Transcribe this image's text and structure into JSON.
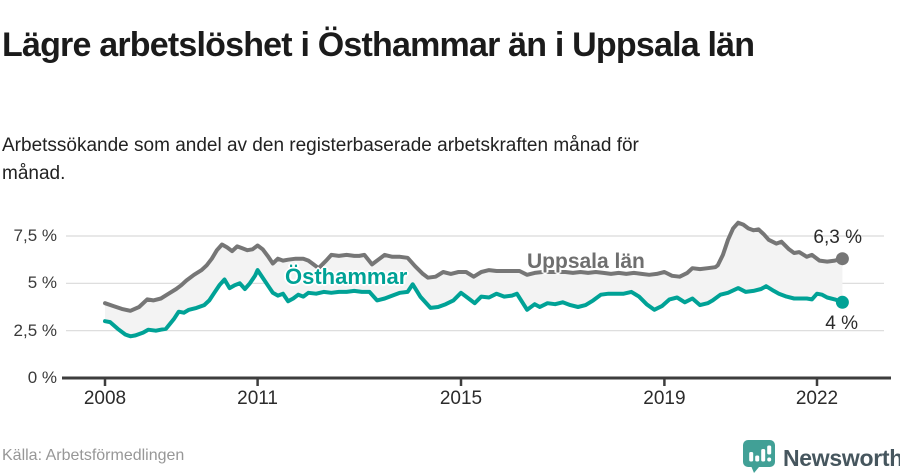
{
  "colors": {
    "teal": "#00a296",
    "gray": "#767676",
    "fill": "#f3f3f3",
    "grid": "#dadada",
    "axis": "#3d3d3d",
    "logo_teal": "#41a096",
    "brand_text": "#46565e"
  },
  "footer": {
    "source": "Källa: Arbetsförmedlingen",
    "brand": "Newsworthy",
    "logo_icon": "newsworthy-bubble-barchart-icon"
  },
  "chart_data": {
    "type": "line",
    "title": "Lägre arbetslöshet i Östhammar än i Uppsala län",
    "subtitle": "Arbetssökande som andel av den registerbaserade arbetskraften månad för månad.",
    "source": "Källa: Arbetsförmedlingen",
    "grid": "horizontal",
    "legend_position": "inline-labels",
    "x_axis": {
      "ticks": [
        2008,
        2011,
        2015,
        2019,
        2022
      ],
      "range": [
        2008,
        2022.6
      ],
      "unit": "year"
    },
    "y_axis": {
      "range": [
        0,
        8.5
      ],
      "unit": "%",
      "ticks": [
        {
          "label": "0 %",
          "value": 0
        },
        {
          "label": "2,5 %",
          "value": 2.5
        },
        {
          "label": "5 %",
          "value": 5
        },
        {
          "label": "7,5 %",
          "value": 7.5
        }
      ]
    },
    "series": [
      {
        "name": "Uppsala län",
        "color": "#767676",
        "end_label": "6,3 %",
        "end_value": 6.3,
        "points": [
          [
            2008.0,
            3.95
          ],
          [
            2008.17,
            3.8
          ],
          [
            2008.33,
            3.65
          ],
          [
            2008.5,
            3.55
          ],
          [
            2008.67,
            3.75
          ],
          [
            2008.83,
            4.15
          ],
          [
            2008.95,
            4.1
          ],
          [
            2009.1,
            4.2
          ],
          [
            2009.25,
            4.45
          ],
          [
            2009.4,
            4.7
          ],
          [
            2009.5,
            4.9
          ],
          [
            2009.6,
            5.15
          ],
          [
            2009.75,
            5.45
          ],
          [
            2009.9,
            5.7
          ],
          [
            2010.0,
            5.95
          ],
          [
            2010.1,
            6.3
          ],
          [
            2010.2,
            6.75
          ],
          [
            2010.3,
            7.05
          ],
          [
            2010.4,
            6.9
          ],
          [
            2010.5,
            6.7
          ],
          [
            2010.6,
            6.95
          ],
          [
            2010.7,
            6.85
          ],
          [
            2010.8,
            6.75
          ],
          [
            2010.9,
            6.8
          ],
          [
            2011.0,
            7.0
          ],
          [
            2011.1,
            6.8
          ],
          [
            2011.2,
            6.45
          ],
          [
            2011.3,
            6.05
          ],
          [
            2011.4,
            6.3
          ],
          [
            2011.5,
            6.2
          ],
          [
            2011.6,
            6.25
          ],
          [
            2011.75,
            6.3
          ],
          [
            2011.9,
            6.3
          ],
          [
            2012.0,
            6.2
          ],
          [
            2012.1,
            6.0
          ],
          [
            2012.2,
            5.8
          ],
          [
            2012.35,
            6.2
          ],
          [
            2012.45,
            6.5
          ],
          [
            2012.6,
            6.45
          ],
          [
            2012.75,
            6.5
          ],
          [
            2012.9,
            6.45
          ],
          [
            2013.0,
            6.45
          ],
          [
            2013.1,
            6.5
          ],
          [
            2013.25,
            6.0
          ],
          [
            2013.4,
            6.3
          ],
          [
            2013.5,
            6.5
          ],
          [
            2013.65,
            6.4
          ],
          [
            2013.8,
            6.4
          ],
          [
            2013.95,
            6.35
          ],
          [
            2014.1,
            5.9
          ],
          [
            2014.25,
            5.5
          ],
          [
            2014.35,
            5.3
          ],
          [
            2014.5,
            5.35
          ],
          [
            2014.65,
            5.6
          ],
          [
            2014.8,
            5.5
          ],
          [
            2014.95,
            5.6
          ],
          [
            2015.1,
            5.6
          ],
          [
            2015.25,
            5.35
          ],
          [
            2015.4,
            5.6
          ],
          [
            2015.55,
            5.7
          ],
          [
            2015.7,
            5.65
          ],
          [
            2015.85,
            5.65
          ],
          [
            2016.0,
            5.65
          ],
          [
            2016.15,
            5.65
          ],
          [
            2016.3,
            5.45
          ],
          [
            2016.45,
            5.55
          ],
          [
            2016.6,
            5.6
          ],
          [
            2016.75,
            5.6
          ],
          [
            2016.9,
            5.6
          ],
          [
            2017.05,
            5.6
          ],
          [
            2017.2,
            5.55
          ],
          [
            2017.35,
            5.6
          ],
          [
            2017.5,
            5.55
          ],
          [
            2017.65,
            5.6
          ],
          [
            2017.8,
            5.55
          ],
          [
            2017.95,
            5.5
          ],
          [
            2018.1,
            5.55
          ],
          [
            2018.25,
            5.5
          ],
          [
            2018.4,
            5.55
          ],
          [
            2018.55,
            5.5
          ],
          [
            2018.7,
            5.45
          ],
          [
            2018.85,
            5.5
          ],
          [
            2019.0,
            5.6
          ],
          [
            2019.15,
            5.4
          ],
          [
            2019.3,
            5.35
          ],
          [
            2019.45,
            5.55
          ],
          [
            2019.55,
            5.8
          ],
          [
            2019.7,
            5.75
          ],
          [
            2019.85,
            5.8
          ],
          [
            2020.0,
            5.85
          ],
          [
            2020.05,
            5.95
          ],
          [
            2020.15,
            6.5
          ],
          [
            2020.25,
            7.3
          ],
          [
            2020.35,
            7.9
          ],
          [
            2020.45,
            8.2
          ],
          [
            2020.55,
            8.1
          ],
          [
            2020.65,
            7.9
          ],
          [
            2020.75,
            7.8
          ],
          [
            2020.85,
            7.85
          ],
          [
            2020.95,
            7.6
          ],
          [
            2021.05,
            7.3
          ],
          [
            2021.2,
            7.1
          ],
          [
            2021.3,
            7.2
          ],
          [
            2021.45,
            6.8
          ],
          [
            2021.55,
            6.6
          ],
          [
            2021.65,
            6.65
          ],
          [
            2021.8,
            6.4
          ],
          [
            2021.9,
            6.5
          ],
          [
            2022.05,
            6.2
          ],
          [
            2022.2,
            6.15
          ],
          [
            2022.35,
            6.2
          ],
          [
            2022.5,
            6.3
          ]
        ]
      },
      {
        "name": "Östhammar",
        "color": "#00a296",
        "end_label": "4 %",
        "end_value": 4.0,
        "points": [
          [
            2008.0,
            3.0
          ],
          [
            2008.1,
            2.95
          ],
          [
            2008.25,
            2.6
          ],
          [
            2008.4,
            2.3
          ],
          [
            2008.5,
            2.2
          ],
          [
            2008.6,
            2.25
          ],
          [
            2008.75,
            2.4
          ],
          [
            2008.85,
            2.55
          ],
          [
            2009.0,
            2.5
          ],
          [
            2009.1,
            2.55
          ],
          [
            2009.2,
            2.6
          ],
          [
            2009.35,
            3.1
          ],
          [
            2009.45,
            3.5
          ],
          [
            2009.55,
            3.45
          ],
          [
            2009.65,
            3.6
          ],
          [
            2009.8,
            3.7
          ],
          [
            2009.95,
            3.85
          ],
          [
            2010.05,
            4.1
          ],
          [
            2010.15,
            4.5
          ],
          [
            2010.25,
            4.9
          ],
          [
            2010.35,
            5.2
          ],
          [
            2010.45,
            4.75
          ],
          [
            2010.55,
            4.9
          ],
          [
            2010.65,
            5.0
          ],
          [
            2010.75,
            4.7
          ],
          [
            2010.85,
            5.0
          ],
          [
            2010.95,
            5.4
          ],
          [
            2011.0,
            5.7
          ],
          [
            2011.1,
            5.3
          ],
          [
            2011.2,
            4.9
          ],
          [
            2011.3,
            4.5
          ],
          [
            2011.4,
            4.35
          ],
          [
            2011.5,
            4.45
          ],
          [
            2011.6,
            4.05
          ],
          [
            2011.7,
            4.2
          ],
          [
            2011.8,
            4.4
          ],
          [
            2011.9,
            4.3
          ],
          [
            2012.0,
            4.5
          ],
          [
            2012.15,
            4.45
          ],
          [
            2012.3,
            4.55
          ],
          [
            2012.45,
            4.5
          ],
          [
            2012.6,
            4.55
          ],
          [
            2012.75,
            4.55
          ],
          [
            2012.9,
            4.6
          ],
          [
            2013.05,
            4.55
          ],
          [
            2013.2,
            4.55
          ],
          [
            2013.35,
            4.1
          ],
          [
            2013.5,
            4.2
          ],
          [
            2013.65,
            4.35
          ],
          [
            2013.8,
            4.5
          ],
          [
            2013.95,
            4.55
          ],
          [
            2014.05,
            4.95
          ],
          [
            2014.2,
            4.3
          ],
          [
            2014.4,
            3.7
          ],
          [
            2014.55,
            3.75
          ],
          [
            2014.7,
            3.9
          ],
          [
            2014.85,
            4.1
          ],
          [
            2015.0,
            4.5
          ],
          [
            2015.15,
            4.2
          ],
          [
            2015.27,
            3.95
          ],
          [
            2015.4,
            4.3
          ],
          [
            2015.55,
            4.25
          ],
          [
            2015.7,
            4.45
          ],
          [
            2015.85,
            4.3
          ],
          [
            2016.0,
            4.35
          ],
          [
            2016.1,
            4.45
          ],
          [
            2016.3,
            3.6
          ],
          [
            2016.45,
            3.9
          ],
          [
            2016.55,
            3.75
          ],
          [
            2016.7,
            3.95
          ],
          [
            2016.85,
            3.9
          ],
          [
            2017.0,
            4.0
          ],
          [
            2017.15,
            3.85
          ],
          [
            2017.3,
            3.75
          ],
          [
            2017.45,
            3.85
          ],
          [
            2017.6,
            4.1
          ],
          [
            2017.75,
            4.4
          ],
          [
            2017.9,
            4.45
          ],
          [
            2018.05,
            4.45
          ],
          [
            2018.2,
            4.45
          ],
          [
            2018.35,
            4.55
          ],
          [
            2018.5,
            4.3
          ],
          [
            2018.65,
            3.9
          ],
          [
            2018.8,
            3.6
          ],
          [
            2018.95,
            3.8
          ],
          [
            2019.1,
            4.15
          ],
          [
            2019.25,
            4.25
          ],
          [
            2019.4,
            4.0
          ],
          [
            2019.55,
            4.2
          ],
          [
            2019.7,
            3.85
          ],
          [
            2019.85,
            3.95
          ],
          [
            2019.95,
            4.1
          ],
          [
            2020.1,
            4.4
          ],
          [
            2020.25,
            4.5
          ],
          [
            2020.45,
            4.75
          ],
          [
            2020.6,
            4.55
          ],
          [
            2020.75,
            4.6
          ],
          [
            2020.9,
            4.7
          ],
          [
            2021.0,
            4.85
          ],
          [
            2021.15,
            4.6
          ],
          [
            2021.25,
            4.45
          ],
          [
            2021.4,
            4.3
          ],
          [
            2021.55,
            4.2
          ],
          [
            2021.7,
            4.2
          ],
          [
            2021.8,
            4.2
          ],
          [
            2021.9,
            4.15
          ],
          [
            2022.0,
            4.45
          ],
          [
            2022.1,
            4.4
          ],
          [
            2022.2,
            4.25
          ],
          [
            2022.35,
            4.15
          ],
          [
            2022.5,
            4.0
          ]
        ]
      }
    ]
  }
}
